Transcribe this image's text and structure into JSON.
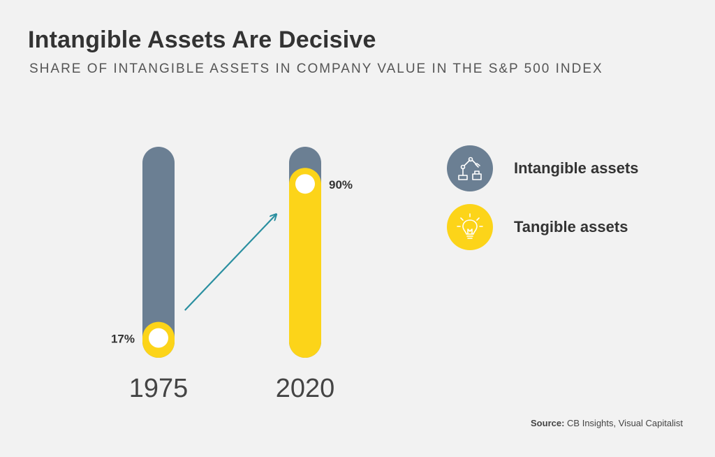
{
  "title": "Intangible Assets Are Decisive",
  "subtitle": "SHARE OF INTANGIBLE ASSETS IN COMPANY VALUE IN THE S&P 500 INDEX",
  "legend": {
    "items": [
      {
        "label": "Intangible assets",
        "color": "#6b7f93",
        "icon": "robot-arm-icon"
      },
      {
        "label": "Tangible assets",
        "color": "#fcd419",
        "icon": "lightbulb-icon"
      }
    ]
  },
  "source": {
    "label": "Source:",
    "text": "CB Insights, Visual Capitalist"
  },
  "chart_data": {
    "type": "bar",
    "categories": [
      "1975",
      "2020"
    ],
    "values": [
      17,
      90
    ],
    "value_labels": [
      "17%",
      "90%"
    ],
    "ylim": [
      0,
      100
    ],
    "colors": {
      "intangible": "#6b7f93",
      "tangible": "#fcd419",
      "arrow": "#2a8fa0"
    }
  }
}
